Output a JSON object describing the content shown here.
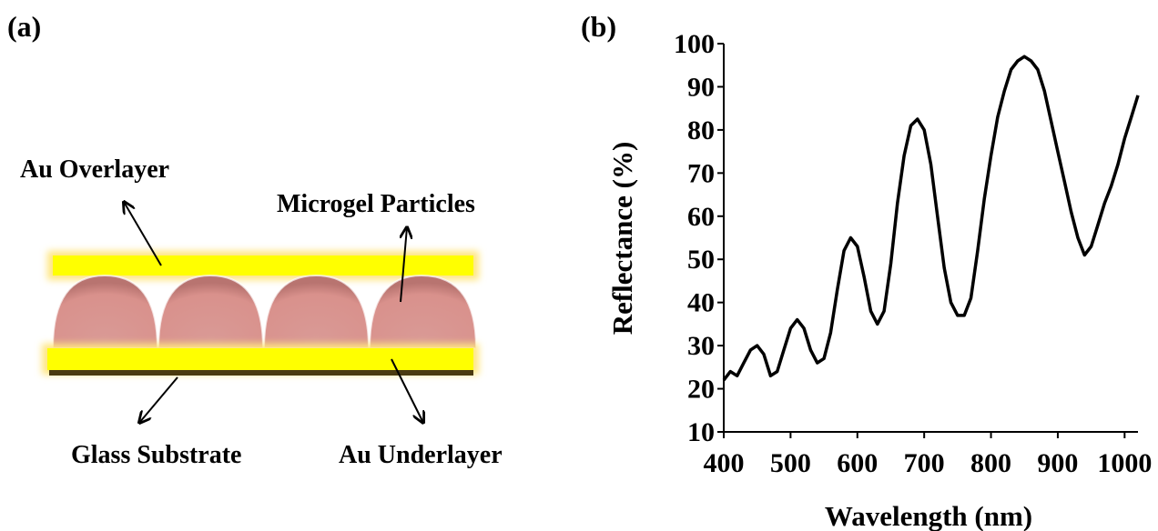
{
  "diagram": {
    "panel_label": "(a)",
    "labels": [
      "Au Overlayer",
      "Microgel Particles",
      "Glass Substrate",
      "Au Underlayer"
    ]
  },
  "chart_data": {
    "type": "line",
    "panel_label": "(b)",
    "x_label": "Wavelength (nm)",
    "y_label": "Reflectance (%)",
    "x": [
      400,
      410,
      420,
      430,
      440,
      450,
      460,
      470,
      480,
      490,
      500,
      510,
      520,
      530,
      540,
      550,
      560,
      570,
      580,
      590,
      600,
      610,
      620,
      630,
      640,
      650,
      660,
      670,
      680,
      690,
      700,
      710,
      720,
      730,
      740,
      750,
      760,
      770,
      780,
      790,
      800,
      810,
      820,
      830,
      840,
      850,
      860,
      870,
      880,
      890,
      900,
      910,
      920,
      930,
      940,
      950,
      960,
      970,
      980,
      990,
      1000,
      1010,
      1020
    ],
    "values": [
      22,
      24,
      23,
      26,
      29,
      30,
      28,
      23,
      24,
      29,
      34,
      36,
      34,
      29,
      26,
      27,
      33,
      43,
      52,
      55,
      53,
      46,
      38,
      35,
      38,
      49,
      63,
      74,
      81,
      82.5,
      80,
      72,
      60,
      48,
      40,
      37,
      37,
      41,
      52,
      64,
      74,
      83,
      89,
      94,
      96,
      97,
      96,
      94,
      89,
      82,
      75,
      68,
      61,
      55,
      51,
      53,
      58,
      63,
      67,
      72,
      78,
      83,
      88
    ],
    "color": "#000000",
    "xlim": [
      400,
      1020
    ],
    "ylim": [
      10,
      100
    ],
    "xticks": [
      400,
      500,
      600,
      700,
      800,
      900,
      1000
    ],
    "yticks": [
      10,
      20,
      30,
      40,
      50,
      60,
      70,
      80,
      90,
      100
    ]
  }
}
